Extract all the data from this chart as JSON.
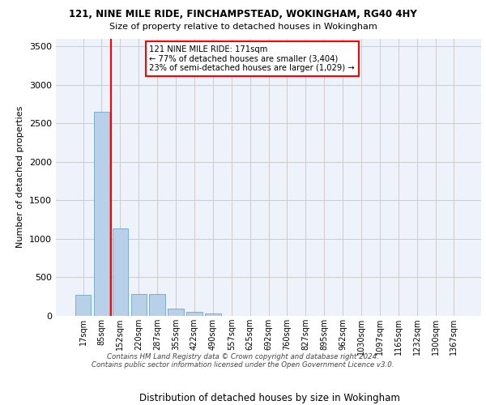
{
  "title_line1": "121, NINE MILE RIDE, FINCHAMPSTEAD, WOKINGHAM, RG40 4HY",
  "title_line2": "Size of property relative to detached houses in Wokingham",
  "xlabel": "Distribution of detached houses by size in Wokingham",
  "ylabel": "Number of detached properties",
  "categories": [
    "17sqm",
    "85sqm",
    "152sqm",
    "220sqm",
    "287sqm",
    "355sqm",
    "422sqm",
    "490sqm",
    "557sqm",
    "625sqm",
    "692sqm",
    "760sqm",
    "827sqm",
    "895sqm",
    "962sqm",
    "1030sqm",
    "1097sqm",
    "1165sqm",
    "1232sqm",
    "1300sqm",
    "1367sqm"
  ],
  "values": [
    270,
    2650,
    1140,
    285,
    285,
    95,
    55,
    35,
    0,
    0,
    0,
    0,
    0,
    0,
    0,
    0,
    0,
    0,
    0,
    0,
    0
  ],
  "bar_color": "#b8d0e8",
  "bar_edge_color": "#5a9abf",
  "grid_color": "#cccccc",
  "background_color": "#edf2fb",
  "vline_color": "red",
  "annotation_text": "121 NINE MILE RIDE: 171sqm\n← 77% of detached houses are smaller (3,404)\n23% of semi-detached houses are larger (1,029) →",
  "annotation_box_color": "white",
  "annotation_box_edge": "red",
  "footer_line1": "Contains HM Land Registry data © Crown copyright and database right 2024.",
  "footer_line2": "Contains public sector information licensed under the Open Government Licence v3.0.",
  "ylim": [
    0,
    3600
  ],
  "yticks": [
    0,
    500,
    1000,
    1500,
    2000,
    2500,
    3000,
    3500
  ]
}
